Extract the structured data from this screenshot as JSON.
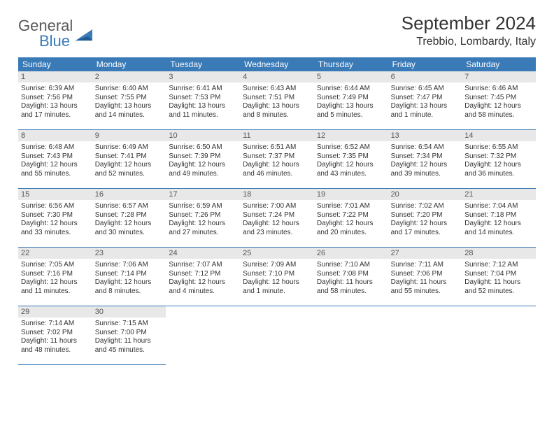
{
  "logo": {
    "general": "General",
    "blue": "Blue"
  },
  "title": "September 2024",
  "title_fontsize": 26,
  "location": "Trebbio, Lombardy, Italy",
  "location_fontsize": 16,
  "colors": {
    "header_bar": "#3a7ab7",
    "daynum_bg": "#e8e8e8",
    "border": "#3a7ab7",
    "logo_gray": "#58595b",
    "logo_blue": "#3a7ab7",
    "text": "#333333",
    "background": "#ffffff"
  },
  "weekdays": [
    "Sunday",
    "Monday",
    "Tuesday",
    "Wednesday",
    "Thursday",
    "Friday",
    "Saturday"
  ],
  "days": [
    {
      "n": "1",
      "sr": "Sunrise: 6:39 AM",
      "ss": "Sunset: 7:56 PM",
      "dl": "Daylight: 13 hours and 17 minutes."
    },
    {
      "n": "2",
      "sr": "Sunrise: 6:40 AM",
      "ss": "Sunset: 7:55 PM",
      "dl": "Daylight: 13 hours and 14 minutes."
    },
    {
      "n": "3",
      "sr": "Sunrise: 6:41 AM",
      "ss": "Sunset: 7:53 PM",
      "dl": "Daylight: 13 hours and 11 minutes."
    },
    {
      "n": "4",
      "sr": "Sunrise: 6:43 AM",
      "ss": "Sunset: 7:51 PM",
      "dl": "Daylight: 13 hours and 8 minutes."
    },
    {
      "n": "5",
      "sr": "Sunrise: 6:44 AM",
      "ss": "Sunset: 7:49 PM",
      "dl": "Daylight: 13 hours and 5 minutes."
    },
    {
      "n": "6",
      "sr": "Sunrise: 6:45 AM",
      "ss": "Sunset: 7:47 PM",
      "dl": "Daylight: 13 hours and 1 minute."
    },
    {
      "n": "7",
      "sr": "Sunrise: 6:46 AM",
      "ss": "Sunset: 7:45 PM",
      "dl": "Daylight: 12 hours and 58 minutes."
    },
    {
      "n": "8",
      "sr": "Sunrise: 6:48 AM",
      "ss": "Sunset: 7:43 PM",
      "dl": "Daylight: 12 hours and 55 minutes."
    },
    {
      "n": "9",
      "sr": "Sunrise: 6:49 AM",
      "ss": "Sunset: 7:41 PM",
      "dl": "Daylight: 12 hours and 52 minutes."
    },
    {
      "n": "10",
      "sr": "Sunrise: 6:50 AM",
      "ss": "Sunset: 7:39 PM",
      "dl": "Daylight: 12 hours and 49 minutes."
    },
    {
      "n": "11",
      "sr": "Sunrise: 6:51 AM",
      "ss": "Sunset: 7:37 PM",
      "dl": "Daylight: 12 hours and 46 minutes."
    },
    {
      "n": "12",
      "sr": "Sunrise: 6:52 AM",
      "ss": "Sunset: 7:35 PM",
      "dl": "Daylight: 12 hours and 43 minutes."
    },
    {
      "n": "13",
      "sr": "Sunrise: 6:54 AM",
      "ss": "Sunset: 7:34 PM",
      "dl": "Daylight: 12 hours and 39 minutes."
    },
    {
      "n": "14",
      "sr": "Sunrise: 6:55 AM",
      "ss": "Sunset: 7:32 PM",
      "dl": "Daylight: 12 hours and 36 minutes."
    },
    {
      "n": "15",
      "sr": "Sunrise: 6:56 AM",
      "ss": "Sunset: 7:30 PM",
      "dl": "Daylight: 12 hours and 33 minutes."
    },
    {
      "n": "16",
      "sr": "Sunrise: 6:57 AM",
      "ss": "Sunset: 7:28 PM",
      "dl": "Daylight: 12 hours and 30 minutes."
    },
    {
      "n": "17",
      "sr": "Sunrise: 6:59 AM",
      "ss": "Sunset: 7:26 PM",
      "dl": "Daylight: 12 hours and 27 minutes."
    },
    {
      "n": "18",
      "sr": "Sunrise: 7:00 AM",
      "ss": "Sunset: 7:24 PM",
      "dl": "Daylight: 12 hours and 23 minutes."
    },
    {
      "n": "19",
      "sr": "Sunrise: 7:01 AM",
      "ss": "Sunset: 7:22 PM",
      "dl": "Daylight: 12 hours and 20 minutes."
    },
    {
      "n": "20",
      "sr": "Sunrise: 7:02 AM",
      "ss": "Sunset: 7:20 PM",
      "dl": "Daylight: 12 hours and 17 minutes."
    },
    {
      "n": "21",
      "sr": "Sunrise: 7:04 AM",
      "ss": "Sunset: 7:18 PM",
      "dl": "Daylight: 12 hours and 14 minutes."
    },
    {
      "n": "22",
      "sr": "Sunrise: 7:05 AM",
      "ss": "Sunset: 7:16 PM",
      "dl": "Daylight: 12 hours and 11 minutes."
    },
    {
      "n": "23",
      "sr": "Sunrise: 7:06 AM",
      "ss": "Sunset: 7:14 PM",
      "dl": "Daylight: 12 hours and 8 minutes."
    },
    {
      "n": "24",
      "sr": "Sunrise: 7:07 AM",
      "ss": "Sunset: 7:12 PM",
      "dl": "Daylight: 12 hours and 4 minutes."
    },
    {
      "n": "25",
      "sr": "Sunrise: 7:09 AM",
      "ss": "Sunset: 7:10 PM",
      "dl": "Daylight: 12 hours and 1 minute."
    },
    {
      "n": "26",
      "sr": "Sunrise: 7:10 AM",
      "ss": "Sunset: 7:08 PM",
      "dl": "Daylight: 11 hours and 58 minutes."
    },
    {
      "n": "27",
      "sr": "Sunrise: 7:11 AM",
      "ss": "Sunset: 7:06 PM",
      "dl": "Daylight: 11 hours and 55 minutes."
    },
    {
      "n": "28",
      "sr": "Sunrise: 7:12 AM",
      "ss": "Sunset: 7:04 PM",
      "dl": "Daylight: 11 hours and 52 minutes."
    },
    {
      "n": "29",
      "sr": "Sunrise: 7:14 AM",
      "ss": "Sunset: 7:02 PM",
      "dl": "Daylight: 11 hours and 48 minutes."
    },
    {
      "n": "30",
      "sr": "Sunrise: 7:15 AM",
      "ss": "Sunset: 7:00 PM",
      "dl": "Daylight: 11 hours and 45 minutes."
    }
  ],
  "trailing_empty": 5
}
